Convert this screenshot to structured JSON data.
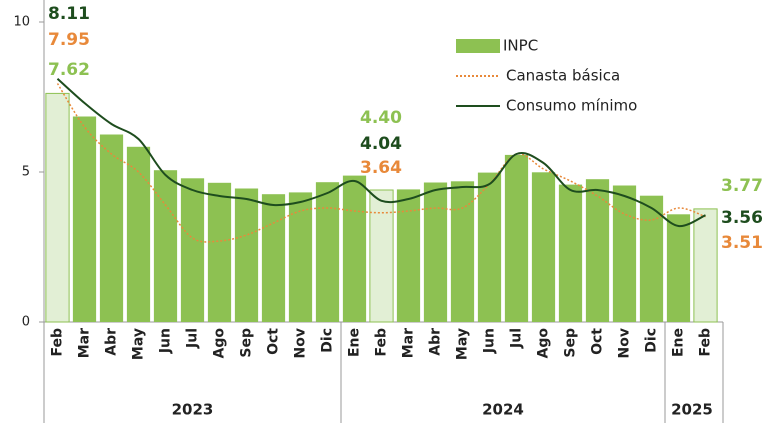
{
  "chart_data": {
    "type": "bar_line",
    "categories": [
      "Feb",
      "Mar",
      "Abr",
      "May",
      "Jun",
      "Jul",
      "Ago",
      "Sep",
      "Oct",
      "Nov",
      "Dic",
      "Ene",
      "Feb",
      "Mar",
      "Abr",
      "May",
      "Jun",
      "Jul",
      "Ago",
      "Sep",
      "Oct",
      "Nov",
      "Dic",
      "Ene",
      "Feb"
    ],
    "groups": [
      {
        "label": "2023",
        "size": 11
      },
      {
        "label": "2024",
        "size": 12
      },
      {
        "label": "2025",
        "size": 2
      }
    ],
    "series": [
      {
        "name": "INPC",
        "kind": "bar",
        "color": "#8dc152",
        "highlight_color": "#e2efd5",
        "values": [
          7.62,
          6.85,
          6.25,
          5.84,
          5.06,
          4.79,
          4.64,
          4.45,
          4.26,
          4.32,
          4.66,
          4.88,
          4.4,
          4.42,
          4.65,
          4.69,
          4.98,
          5.57,
          4.99,
          4.58,
          4.76,
          4.55,
          4.21,
          3.59,
          3.77
        ],
        "value_labels": [
          "7.62",
          null,
          null,
          null,
          null,
          null,
          null,
          null,
          null,
          null,
          null,
          null,
          "4.40",
          null,
          null,
          null,
          null,
          null,
          null,
          null,
          null,
          null,
          null,
          null,
          "3.77"
        ]
      },
      {
        "name": "Canasta básica",
        "kind": "dotted-line",
        "color": "#e8893a",
        "values": [
          7.95,
          6.5,
          5.6,
          5.0,
          3.9,
          2.8,
          2.7,
          2.9,
          3.3,
          3.7,
          3.8,
          3.7,
          3.64,
          3.7,
          3.8,
          3.8,
          4.6,
          5.6,
          5.1,
          4.7,
          4.2,
          3.6,
          3.4,
          3.8,
          3.51
        ],
        "value_labels": [
          "7.95",
          null,
          null,
          null,
          null,
          null,
          null,
          null,
          null,
          null,
          null,
          null,
          "3.64",
          null,
          null,
          null,
          null,
          null,
          null,
          null,
          null,
          null,
          null,
          null,
          "3.51"
        ]
      },
      {
        "name": "Consumo mínimo",
        "kind": "line",
        "color": "#1e4d1e",
        "values": [
          8.11,
          7.3,
          6.6,
          6.1,
          4.9,
          4.4,
          4.2,
          4.1,
          3.9,
          4.0,
          4.3,
          4.7,
          4.04,
          4.1,
          4.4,
          4.5,
          4.6,
          5.6,
          5.3,
          4.4,
          4.4,
          4.2,
          3.8,
          3.2,
          3.56
        ],
        "value_labels": [
          "8.11",
          null,
          null,
          null,
          null,
          null,
          null,
          null,
          null,
          null,
          null,
          null,
          "4.04",
          null,
          null,
          null,
          null,
          null,
          null,
          null,
          null,
          null,
          null,
          null,
          "3.56"
        ]
      }
    ],
    "ylim": [
      0,
      10
    ],
    "yticks": [
      0,
      5,
      10
    ]
  }
}
